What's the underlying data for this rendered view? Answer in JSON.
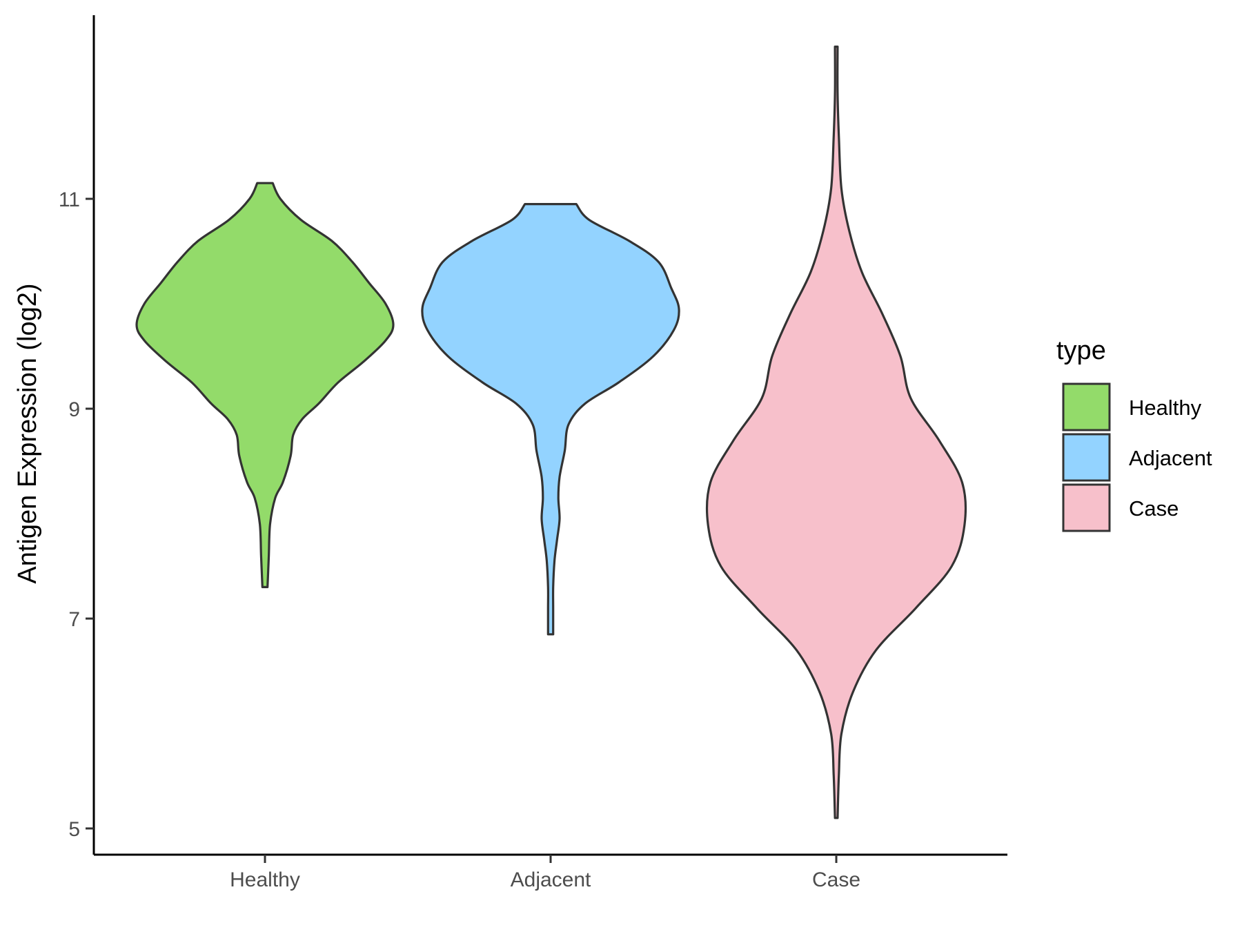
{
  "chart_data": {
    "type": "violin",
    "ylabel": "Antigen Expression (log2)",
    "ylim": [
      4.75,
      12.75
    ],
    "yticks": [
      5,
      7,
      9,
      11
    ],
    "categories": [
      "Healthy",
      "Adjacent",
      "Case"
    ],
    "legend": {
      "title": "type",
      "position": "right",
      "entries": [
        {
          "label": "Healthy",
          "color": "#93DB6A"
        },
        {
          "label": "Adjacent",
          "color": "#93D3FF"
        },
        {
          "label": "Case",
          "color": "#F7C0CB"
        }
      ]
    },
    "series": [
      {
        "category": "Healthy",
        "color": "#93DB6A",
        "min": 7.3,
        "max": 11.15,
        "density": [
          [
            7.3,
            0.02
          ],
          [
            7.6,
            0.03
          ],
          [
            7.9,
            0.04
          ],
          [
            8.15,
            0.08
          ],
          [
            8.3,
            0.14
          ],
          [
            8.55,
            0.2
          ],
          [
            8.75,
            0.22
          ],
          [
            8.9,
            0.29
          ],
          [
            9.05,
            0.42
          ],
          [
            9.25,
            0.57
          ],
          [
            9.45,
            0.77
          ],
          [
            9.65,
            0.94
          ],
          [
            9.8,
            1.0
          ],
          [
            10.0,
            0.94
          ],
          [
            10.2,
            0.81
          ],
          [
            10.4,
            0.68
          ],
          [
            10.6,
            0.52
          ],
          [
            10.8,
            0.28
          ],
          [
            11.0,
            0.12
          ],
          [
            11.15,
            0.06
          ]
        ]
      },
      {
        "category": "Adjacent",
        "color": "#93D3FF",
        "min": 6.85,
        "max": 10.95,
        "density": [
          [
            6.85,
            0.02
          ],
          [
            7.1,
            0.02
          ],
          [
            7.3,
            0.02
          ],
          [
            7.55,
            0.03
          ],
          [
            7.75,
            0.05
          ],
          [
            7.95,
            0.07
          ],
          [
            8.15,
            0.06
          ],
          [
            8.35,
            0.07
          ],
          [
            8.6,
            0.11
          ],
          [
            8.85,
            0.14
          ],
          [
            9.05,
            0.27
          ],
          [
            9.25,
            0.53
          ],
          [
            9.5,
            0.8
          ],
          [
            9.75,
            0.96
          ],
          [
            9.95,
            1.0
          ],
          [
            10.15,
            0.94
          ],
          [
            10.4,
            0.84
          ],
          [
            10.6,
            0.61
          ],
          [
            10.8,
            0.3
          ],
          [
            10.95,
            0.2
          ]
        ]
      },
      {
        "category": "Case",
        "color": "#F7C0CB",
        "min": 5.1,
        "max": 12.45,
        "density": [
          [
            5.1,
            0.01
          ],
          [
            5.5,
            0.02
          ],
          [
            5.9,
            0.04
          ],
          [
            6.3,
            0.13
          ],
          [
            6.7,
            0.31
          ],
          [
            7.1,
            0.62
          ],
          [
            7.5,
            0.9
          ],
          [
            7.9,
            1.0
          ],
          [
            8.3,
            0.98
          ],
          [
            8.7,
            0.8
          ],
          [
            9.1,
            0.58
          ],
          [
            9.5,
            0.5
          ],
          [
            9.9,
            0.36
          ],
          [
            10.3,
            0.2
          ],
          [
            10.7,
            0.1
          ],
          [
            11.1,
            0.04
          ],
          [
            11.6,
            0.02
          ],
          [
            12.0,
            0.01
          ],
          [
            12.45,
            0.01
          ]
        ]
      }
    ]
  }
}
